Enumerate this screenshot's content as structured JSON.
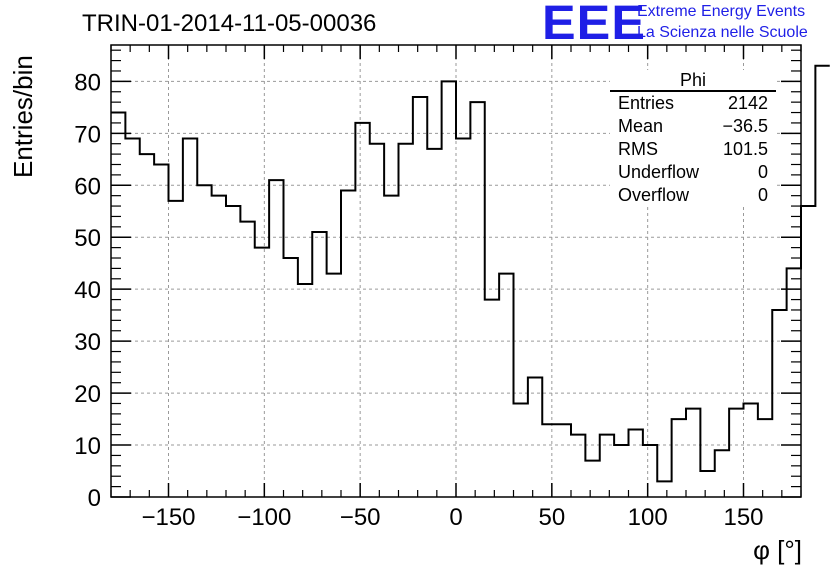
{
  "title": "TRIN-01-2014-11-05-00036",
  "logo": {
    "mark": "EEE",
    "line1": "Extreme Energy Events",
    "line2": "La Scienza nelle Scuole",
    "color": "#1f1fe6"
  },
  "stats": {
    "name": "Phi",
    "rows": [
      {
        "label": "Entries",
        "value": "2142"
      },
      {
        "label": "Mean",
        "value": "−36.5"
      },
      {
        "label": "RMS",
        "value": "101.5"
      },
      {
        "label": "Underflow",
        "value": "0"
      },
      {
        "label": "Overflow",
        "value": "0"
      }
    ]
  },
  "chart_data": {
    "type": "bar",
    "style": "step-histogram",
    "xlabel": "φ [°]",
    "ylabel": "Entries/bin",
    "xlim": [
      -180,
      180
    ],
    "ylim": [
      0,
      87
    ],
    "bin_width": 7.5,
    "bin_edges_start": -180,
    "values": [
      74,
      69,
      66,
      64,
      57,
      69,
      60,
      58,
      56,
      53,
      48,
      61,
      46,
      41,
      51,
      43,
      59,
      72,
      68,
      58,
      68,
      77,
      67,
      80,
      69,
      76,
      38,
      43,
      18,
      23,
      14,
      14,
      12,
      7,
      12,
      10,
      13,
      10,
      3,
      15,
      17,
      5,
      9,
      17,
      18,
      15,
      36,
      44,
      56,
      83
    ],
    "xticks": [
      -150,
      -100,
      -50,
      0,
      50,
      100,
      150
    ],
    "xtick_labels": [
      "−150",
      "−100",
      "−50",
      "0",
      "50",
      "100",
      "150"
    ],
    "yticks": [
      0,
      10,
      20,
      30,
      40,
      50,
      60,
      70,
      80
    ],
    "ytick_labels": [
      "0",
      "10",
      "20",
      "30",
      "40",
      "50",
      "60",
      "70",
      "80"
    ],
    "grid": true,
    "line_color": "#000000"
  }
}
